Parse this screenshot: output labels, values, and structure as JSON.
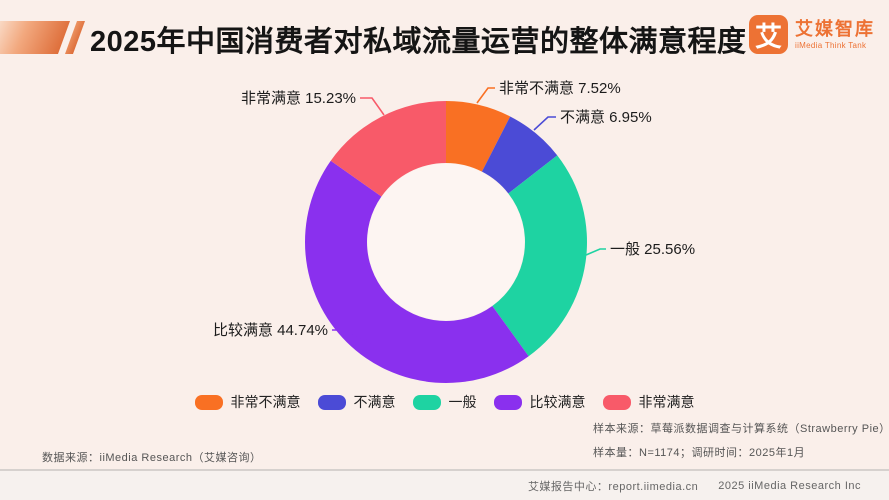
{
  "header": {
    "title": "2025年中国消费者对私域流量运营的整体满意程度",
    "logo": {
      "icon_char": "艾",
      "name": "艾媒智库",
      "subtitle": "iiMedia Think Tank",
      "brand_color": "#ED7234"
    }
  },
  "chart_data": {
    "type": "pie",
    "subtype": "donut",
    "title": "2025年中国消费者对私域流量运营的整体满意程度",
    "categories": [
      "非常不满意",
      "不满意",
      "一般",
      "比较满意",
      "非常满意"
    ],
    "values": [
      7.52,
      6.95,
      25.56,
      44.74,
      15.23
    ],
    "unit": "%",
    "colors": [
      "#F97023",
      "#4B4BD6",
      "#1ED3A2",
      "#8A30EE",
      "#F85A69"
    ],
    "start_angle_deg": 0,
    "direction": "clockwise",
    "legend_position": "bottom",
    "hole_color": "#FDF5F2",
    "background_color": "#FAEFEA"
  },
  "notes": {
    "sample_source": "样本来源：草莓派数据调查与计算系统（Strawberry Pie）",
    "sample_size": "样本量：N=1174；调研时间：2025年1月",
    "data_source": "数据来源：iiMedia Research（艾媒咨询）"
  },
  "footer": {
    "report_center": "艾媒报告中心：report.iimedia.cn",
    "copyright": "2025 iiMedia Research Inc"
  }
}
